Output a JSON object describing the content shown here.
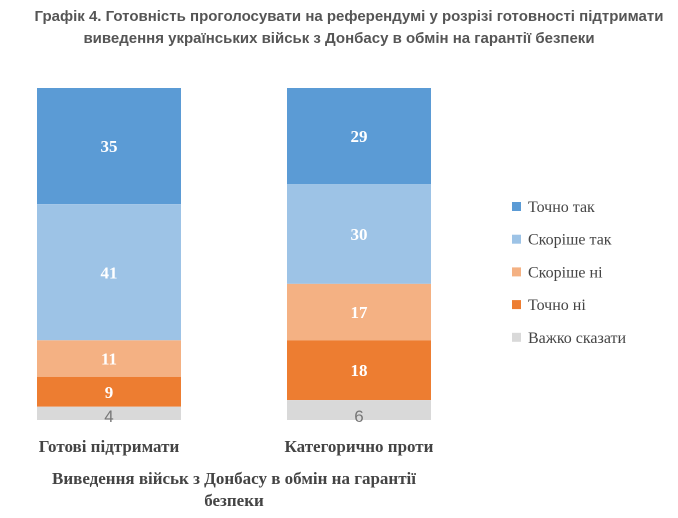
{
  "chart_data": {
    "type": "bar",
    "stacked": true,
    "title_lines": [
      "Графік 4. Готовність проголосувати на референдумі у розрізі готовності підтримати",
      "виведення українських військ з Донбасу в обмін на гарантії безпеки"
    ],
    "categories": [
      "Готові підтримати",
      "Категорично проти"
    ],
    "xlabel_lines": [
      "Виведення військ з Донбасу в обмін на гарантії",
      "безпеки"
    ],
    "ylim": [
      0,
      100
    ],
    "legend_position": "right",
    "series": [
      {
        "name": "Точно так",
        "color": "#5B9BD5",
        "values": [
          35,
          29
        ]
      },
      {
        "name": "Скоріше так",
        "color": "#9DC3E6",
        "values": [
          41,
          30
        ]
      },
      {
        "name": "Скоріше ні",
        "color": "#F4B183",
        "values": [
          11,
          17
        ]
      },
      {
        "name": "Точно ні",
        "color": "#ED7D31",
        "values": [
          9,
          18
        ]
      },
      {
        "name": "Важко сказати",
        "color": "#D9D9D9",
        "values": [
          4,
          6
        ]
      }
    ]
  }
}
